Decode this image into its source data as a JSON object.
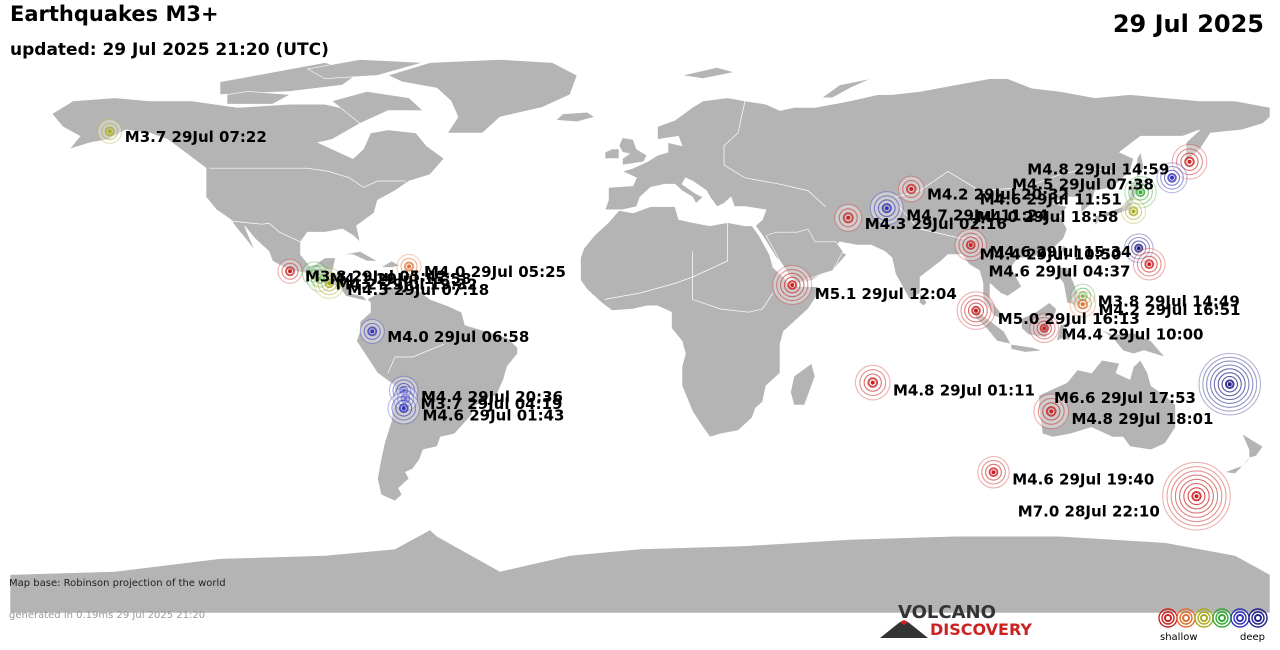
{
  "header": {
    "title": "Earthquakes M3+",
    "updated": "updated: 29 Jul 2025 21:20 (UTC)",
    "date": "29 Jul 2025"
  },
  "footer": {
    "map_base": "Map base: Robinson projection of the world",
    "generated": "generated in 0.19ms 29 Jul 2025 21:20"
  },
  "logo": {
    "line1": "VOLCANO",
    "line2": "DISCOVERY"
  },
  "legend": {
    "shallow_label": "shallow",
    "deep_label": "deep",
    "colors": [
      "#cc2222",
      "#e07030",
      "#aaaa22",
      "#33aa33",
      "#3333bb",
      "#222288"
    ]
  },
  "colors": {
    "ocean": "#ffffff",
    "land": "#b4b4b4",
    "land_border": "#ffffff",
    "red": "#cc2222",
    "orange": "#e07030",
    "yellow": "#aaaa22",
    "green": "#33aa33",
    "blue": "#3333bb",
    "darkblue": "#222288"
  },
  "quakes": [
    {
      "label": "M3.7 29Jul 07:22",
      "lat": 60.5,
      "lon": -151.5,
      "mag": 3.7,
      "color": "yellow"
    },
    {
      "label": "M3.8 29Jul 05:42",
      "lat": 16.8,
      "lon": -100.0,
      "mag": 3.8,
      "color": "red"
    },
    {
      "label": "M4.1 29Jul 15:58",
      "lat": 16.0,
      "lon": -93.0,
      "mag": 4.1,
      "color": "green"
    },
    {
      "label": "M4.2 29Jul 19:32",
      "lat": 14.5,
      "lon": -91.5,
      "mag": 4.2,
      "color": "green"
    },
    {
      "label": "M4.5 29Jul 07:18",
      "lat": 13.0,
      "lon": -88.8,
      "mag": 4.5,
      "color": "yellow"
    },
    {
      "label": "M4.0 29Jul 05:25",
      "lat": 18.3,
      "lon": -66.0,
      "mag": 4.0,
      "color": "orange"
    },
    {
      "label": "M4.0 29Jul 06:58",
      "lat": -2.0,
      "lon": -76.5,
      "mag": 4.0,
      "color": "blue"
    },
    {
      "label": "M4.4 29Jul 20:36",
      "lat": -20.5,
      "lon": -67.5,
      "mag": 4.4,
      "color": "blue"
    },
    {
      "label": "M3.7 29Jul 04:19",
      "lat": -23.0,
      "lon": -67.0,
      "mag": 3.7,
      "color": "blue"
    },
    {
      "label": "M4.6 29Jul 01:43",
      "lat": -26.0,
      "lon": -67.5,
      "mag": 4.6,
      "color": "blue"
    },
    {
      "label": "M4.2 29Jul 20:32",
      "lat": 42.5,
      "lon": 77.5,
      "mag": 4.2,
      "color": "red"
    },
    {
      "label": "M4.3 29Jul 02:16",
      "lat": 33.5,
      "lon": 59.5,
      "mag": 4.3,
      "color": "red"
    },
    {
      "label": "M4.7 29Jul 11:24",
      "lat": 36.5,
      "lon": 70.5,
      "mag": 4.7,
      "color": "blue"
    },
    {
      "label": "M5.1 29Jul 12:04",
      "lat": 12.5,
      "lon": 43.5,
      "mag": 5.1,
      "color": "red"
    },
    {
      "label": "M4.6 29Jul 15:34",
      "lat": 25.0,
      "lon": 94.5,
      "mag": 4.6,
      "color": "red"
    },
    {
      "label": "M5.0 29Jul 16:13",
      "lat": 4.5,
      "lon": 96.0,
      "mag": 5.0,
      "color": "red"
    },
    {
      "label": "M4.8 29Jul 14:59",
      "lat": 51.0,
      "lon": 157.0,
      "mag": 4.8,
      "color": "red"
    },
    {
      "label": "M4.5 29Jul 07:38",
      "lat": 46.0,
      "lon": 152.0,
      "mag": 4.5,
      "color": "blue"
    },
    {
      "label": "M4.6 29Jul 11:51",
      "lat": 41.5,
      "lon": 143.0,
      "mag": 4.6,
      "color": "green"
    },
    {
      "label": "M4.0 29Jul 18:58",
      "lat": 35.5,
      "lon": 141.0,
      "mag": 4.0,
      "color": "yellow"
    },
    {
      "label": "M4.4 29Jul 10:50",
      "lat": 24.0,
      "lon": 142.5,
      "mag": 4.4,
      "color": "darkblue"
    },
    {
      "label": "M4.6 29Jul 04:37",
      "lat": 19.0,
      "lon": 145.5,
      "mag": 4.6,
      "color": "red"
    },
    {
      "label": "M3.8 29Jul 14:49",
      "lat": 9.0,
      "lon": 126.5,
      "mag": 3.8,
      "color": "green"
    },
    {
      "label": "M4.2 29Jul 16:51",
      "lat": 6.5,
      "lon": 126.5,
      "mag": 4.2,
      "color": "orange"
    },
    {
      "label": "M4.4 29Jul 10:00",
      "lat": -1.0,
      "lon": 115.5,
      "mag": 4.4,
      "color": "red"
    },
    {
      "label": "M4.8 29Jul 01:11",
      "lat": -18.0,
      "lon": 66.5,
      "mag": 4.8,
      "color": "red"
    },
    {
      "label": "M4.8 29Jul 18:01",
      "lat": -27.0,
      "lon": 117.5,
      "mag": 4.8,
      "color": "red"
    },
    {
      "label": "M6.6 29Jul 17:53",
      "lat": -18.5,
      "lon": 168.5,
      "mag": 6.6,
      "color": "darkblue"
    },
    {
      "label": "M4.6 29Jul 19:40",
      "lat": -46.0,
      "lon": 101.0,
      "mag": 4.6,
      "color": "red"
    },
    {
      "label": "M7.0 28Jul 22:10",
      "lat": -53.5,
      "lon": 159.0,
      "mag": 7.0,
      "color": "red"
    }
  ]
}
